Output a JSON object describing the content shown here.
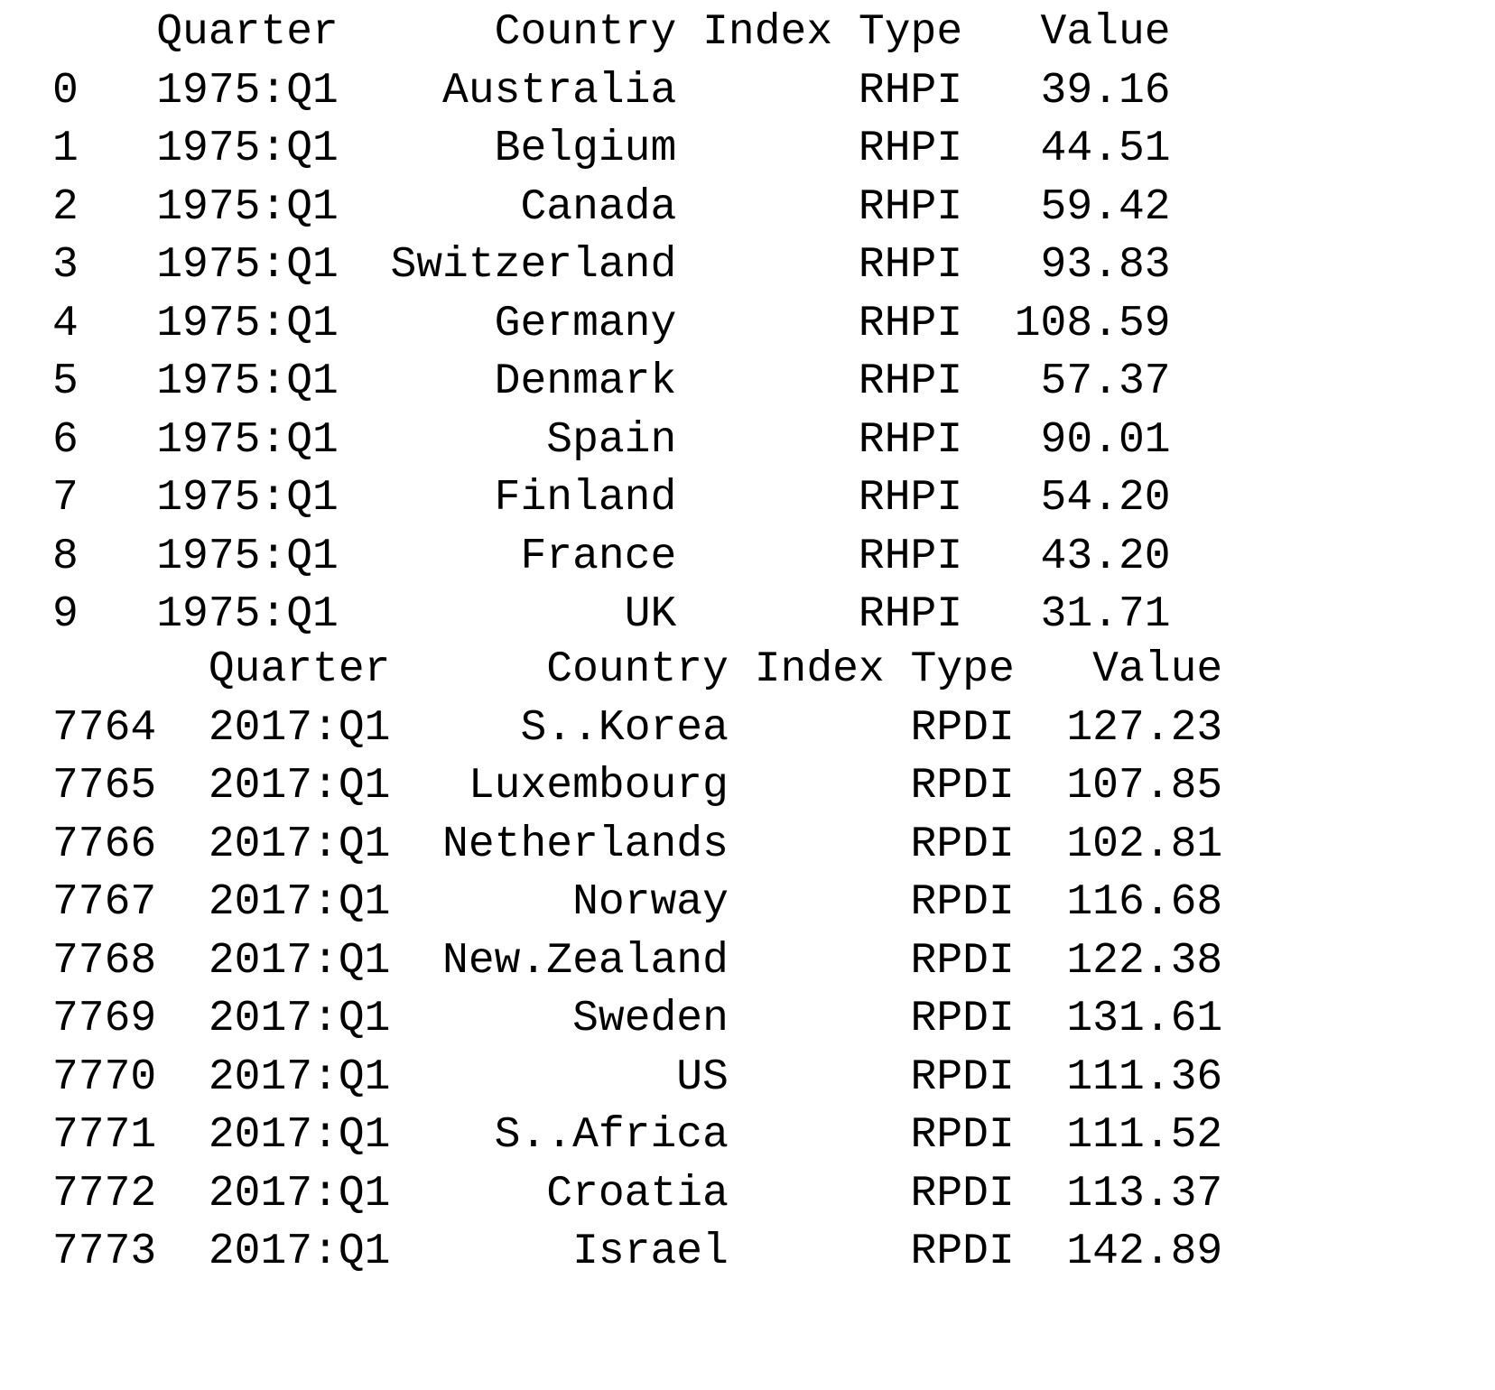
{
  "head": {
    "columns": [
      "Quarter",
      "Country",
      "Index Type",
      "Value"
    ],
    "rows": [
      {
        "index": "0",
        "quarter": "1975:Q1",
        "country": "Australia",
        "type": "RHPI",
        "value": "39.16"
      },
      {
        "index": "1",
        "quarter": "1975:Q1",
        "country": "Belgium",
        "type": "RHPI",
        "value": "44.51"
      },
      {
        "index": "2",
        "quarter": "1975:Q1",
        "country": "Canada",
        "type": "RHPI",
        "value": "59.42"
      },
      {
        "index": "3",
        "quarter": "1975:Q1",
        "country": "Switzerland",
        "type": "RHPI",
        "value": "93.83"
      },
      {
        "index": "4",
        "quarter": "1975:Q1",
        "country": "Germany",
        "type": "RHPI",
        "value": "108.59"
      },
      {
        "index": "5",
        "quarter": "1975:Q1",
        "country": "Denmark",
        "type": "RHPI",
        "value": "57.37"
      },
      {
        "index": "6",
        "quarter": "1975:Q1",
        "country": "Spain",
        "type": "RHPI",
        "value": "90.01"
      },
      {
        "index": "7",
        "quarter": "1975:Q1",
        "country": "Finland",
        "type": "RHPI",
        "value": "54.20"
      },
      {
        "index": "8",
        "quarter": "1975:Q1",
        "country": "France",
        "type": "RHPI",
        "value": "43.20"
      },
      {
        "index": "9",
        "quarter": "1975:Q1",
        "country": "UK",
        "type": "RHPI",
        "value": "31.71"
      }
    ]
  },
  "tail": {
    "columns": [
      "Quarter",
      "Country",
      "Index Type",
      "Value"
    ],
    "rows": [
      {
        "index": "7764",
        "quarter": "2017:Q1",
        "country": "S..Korea",
        "type": "RPDI",
        "value": "127.23"
      },
      {
        "index": "7765",
        "quarter": "2017:Q1",
        "country": "Luxembourg",
        "type": "RPDI",
        "value": "107.85"
      },
      {
        "index": "7766",
        "quarter": "2017:Q1",
        "country": "Netherlands",
        "type": "RPDI",
        "value": "102.81"
      },
      {
        "index": "7767",
        "quarter": "2017:Q1",
        "country": "Norway",
        "type": "RPDI",
        "value": "116.68"
      },
      {
        "index": "7768",
        "quarter": "2017:Q1",
        "country": "New.Zealand",
        "type": "RPDI",
        "value": "122.38"
      },
      {
        "index": "7769",
        "quarter": "2017:Q1",
        "country": "Sweden",
        "type": "RPDI",
        "value": "131.61"
      },
      {
        "index": "7770",
        "quarter": "2017:Q1",
        "country": "US",
        "type": "RPDI",
        "value": "111.36"
      },
      {
        "index": "7771",
        "quarter": "2017:Q1",
        "country": "S..Africa",
        "type": "RPDI",
        "value": "111.52"
      },
      {
        "index": "7772",
        "quarter": "2017:Q1",
        "country": "Croatia",
        "type": "RPDI",
        "value": "113.37"
      },
      {
        "index": "7773",
        "quarter": "2017:Q1",
        "country": "Israel",
        "type": "RPDI",
        "value": "142.89"
      }
    ]
  }
}
